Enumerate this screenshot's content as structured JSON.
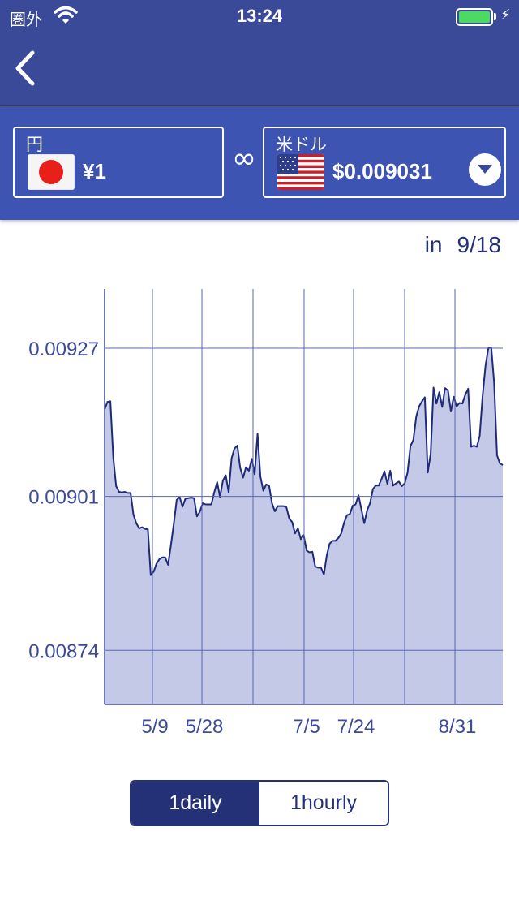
{
  "status_bar": {
    "carrier": "圏外",
    "time": "13:24"
  },
  "converter": {
    "from": {
      "name": "円",
      "amount": "¥1",
      "flag": "japan-flag-icon"
    },
    "link_symbol": "∞",
    "to": {
      "name": "米ドル",
      "amount": "$0.009031",
      "flag": "usa-flag-icon"
    }
  },
  "date": {
    "label": "in",
    "value": "9/18"
  },
  "colors": {
    "header": "#3a4a98",
    "converter": "#3e54b3",
    "accent": "#243177",
    "fill": "#c4c9e8",
    "line": "#1f2a78"
  },
  "segment": {
    "daily_label": "1daily",
    "hourly_label": "1hourly",
    "selected": "1daily"
  },
  "chart_data": {
    "type": "area",
    "title": "",
    "xlabel": "",
    "ylabel": "",
    "x_tick_labels": [
      "5/9",
      "5/28",
      "7/5",
      "7/24",
      "8/31"
    ],
    "y_tick_labels": [
      "0.00927",
      "0.00901",
      "0.00874"
    ],
    "y_ticks": [
      0.00927,
      0.00901,
      0.00874
    ],
    "ylim": [
      0.008645,
      0.009374
    ],
    "grid": true,
    "series": [
      {
        "values": [
          0.009163,
          0.009176,
          0.009177,
          0.009078,
          0.009028,
          0.009018,
          0.009017,
          0.009018,
          0.009016,
          0.009016,
          0.008978,
          0.008963,
          0.008954,
          0.008956,
          0.008953,
          0.008952,
          0.008872,
          0.008878,
          0.008892,
          0.0089,
          0.008903,
          0.008903,
          0.00889,
          0.008925,
          0.008963,
          0.009004,
          0.009009,
          0.008992,
          0.009006,
          0.009007,
          0.009008,
          0.009007,
          0.008975,
          0.008983,
          0.008998,
          0.008996,
          0.008996,
          0.008996,
          0.009017,
          0.009035,
          0.009009,
          0.009038,
          0.009047,
          0.009017,
          0.009077,
          0.009094,
          0.009099,
          0.00906,
          0.009043,
          0.009061,
          0.009055,
          0.009076,
          0.009049,
          0.00912,
          0.009045,
          0.00902,
          0.009031,
          0.009029,
          0.008998,
          0.008984,
          0.008993,
          0.008993,
          0.008993,
          0.008991,
          0.008971,
          0.008965,
          0.008945,
          0.008954,
          0.008935,
          0.008942,
          0.008915,
          0.008912,
          0.008913,
          0.008887,
          0.008885,
          0.008885,
          0.008873,
          0.008907,
          0.008927,
          0.008932,
          0.008932,
          0.008937,
          0.008945,
          0.008964,
          0.008977,
          0.008979,
          0.008994,
          0.008996,
          0.009012,
          0.008987,
          0.008963,
          0.008986,
          0.008998,
          0.009023,
          0.009029,
          0.009029,
          0.009041,
          0.009054,
          0.009032,
          0.009055,
          0.009029,
          0.009033,
          0.009036,
          0.009028,
          0.009033,
          0.009052,
          0.009098,
          0.009109,
          0.00915,
          0.009168,
          0.009177,
          0.009184,
          0.009052,
          0.009085,
          0.009201,
          0.009173,
          0.009193,
          0.009167,
          0.0092,
          0.009196,
          0.009159,
          0.009185,
          0.009168,
          0.009174,
          0.009173,
          0.009188,
          0.009199,
          0.009097,
          0.009099,
          0.009097,
          0.009116,
          0.009186,
          0.009239,
          0.00927,
          0.009271,
          0.00921,
          0.009082,
          0.009068,
          0.009065
        ]
      }
    ]
  }
}
